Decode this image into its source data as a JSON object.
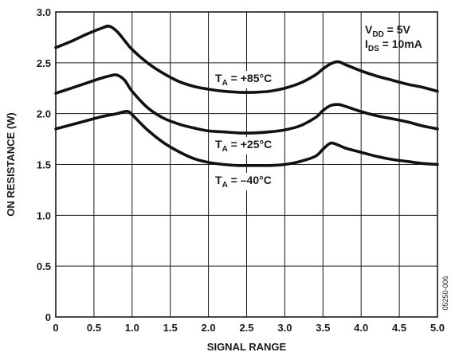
{
  "chart_data": {
    "type": "line",
    "xlabel": "SIGNAL RANGE",
    "ylabel": "ON RESISTANCE (W)",
    "xlim": [
      0,
      5.0
    ],
    "ylim": [
      0,
      3.0
    ],
    "xticks": [
      "0",
      "0.5",
      "1.0",
      "1.5",
      "2.0",
      "2.5",
      "3.0",
      "3.5",
      "4.0",
      "4.5",
      "5.0"
    ],
    "yticks": [
      "0",
      "0.5",
      "1.0",
      "1.5",
      "2.0",
      "2.5",
      "3.0"
    ],
    "grid": true,
    "conditions": {
      "vdd": {
        "main": "V",
        "sub": "DD",
        "rest": " = 5V"
      },
      "ids": {
        "main": "I",
        "sub": "DS",
        "rest": " = 10mA"
      }
    },
    "figure_id": "05250-006",
    "series": [
      {
        "label": {
          "main": "T",
          "sub": "A",
          "rest": " = +85°C"
        },
        "x": [
          0,
          0.2,
          0.4,
          0.6,
          0.7,
          0.8,
          0.9,
          1.0,
          1.2,
          1.4,
          1.6,
          1.8,
          2.0,
          2.2,
          2.4,
          2.6,
          2.8,
          3.0,
          3.2,
          3.4,
          3.5,
          3.6,
          3.7,
          3.8,
          4.0,
          4.2,
          4.4,
          4.6,
          4.8,
          5.0
        ],
        "y": [
          2.65,
          2.71,
          2.78,
          2.84,
          2.86,
          2.81,
          2.72,
          2.63,
          2.5,
          2.4,
          2.32,
          2.27,
          2.24,
          2.22,
          2.21,
          2.21,
          2.22,
          2.25,
          2.3,
          2.38,
          2.44,
          2.49,
          2.51,
          2.48,
          2.42,
          2.37,
          2.33,
          2.29,
          2.26,
          2.22
        ]
      },
      {
        "label": {
          "main": "T",
          "sub": "A",
          "rest": " = +25°C"
        },
        "x": [
          0,
          0.2,
          0.4,
          0.6,
          0.7,
          0.8,
          0.9,
          1.0,
          1.2,
          1.4,
          1.6,
          1.8,
          2.0,
          2.2,
          2.4,
          2.6,
          2.8,
          3.0,
          3.2,
          3.4,
          3.5,
          3.6,
          3.7,
          3.8,
          4.0,
          4.2,
          4.4,
          4.6,
          4.8,
          5.0
        ],
        "y": [
          2.2,
          2.25,
          2.3,
          2.35,
          2.37,
          2.38,
          2.33,
          2.22,
          2.06,
          1.96,
          1.9,
          1.86,
          1.83,
          1.82,
          1.81,
          1.81,
          1.82,
          1.84,
          1.88,
          1.96,
          2.03,
          2.08,
          2.09,
          2.07,
          2.02,
          1.98,
          1.95,
          1.92,
          1.88,
          1.85
        ]
      },
      {
        "label": {
          "main": "T",
          "sub": "A",
          "rest": " = –40°C"
        },
        "x": [
          0,
          0.2,
          0.4,
          0.6,
          0.8,
          0.9,
          0.95,
          1.0,
          1.2,
          1.4,
          1.6,
          1.8,
          2.0,
          2.2,
          2.4,
          2.6,
          2.8,
          3.0,
          3.2,
          3.4,
          3.5,
          3.6,
          3.7,
          3.8,
          4.0,
          4.2,
          4.4,
          4.6,
          4.8,
          5.0
        ],
        "y": [
          1.85,
          1.89,
          1.93,
          1.97,
          2.0,
          2.02,
          2.02,
          1.99,
          1.84,
          1.72,
          1.63,
          1.56,
          1.52,
          1.5,
          1.49,
          1.49,
          1.49,
          1.5,
          1.53,
          1.58,
          1.65,
          1.71,
          1.69,
          1.66,
          1.62,
          1.58,
          1.55,
          1.53,
          1.51,
          1.5
        ]
      }
    ]
  }
}
